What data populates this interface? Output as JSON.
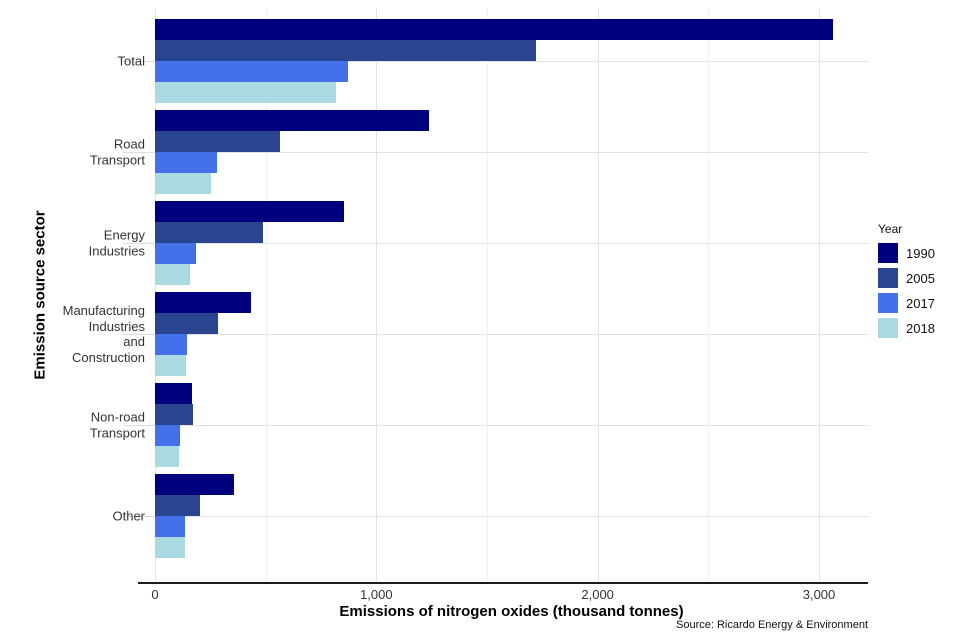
{
  "chart_data": {
    "type": "bar",
    "orientation": "horizontal",
    "xlabel": "Emissions of nitrogen oxides (thousand tonnes)",
    "ylabel": "Emission source sector",
    "xlim": [
      0,
      3220
    ],
    "x_ticks": [
      0,
      1000,
      2000,
      3000
    ],
    "x_tick_labels": [
      "0",
      "1,000",
      "2,000",
      "3,000"
    ],
    "x_gridlines_major": [
      0,
      1000,
      2000,
      3000
    ],
    "x_gridlines_minor": [
      500,
      1500,
      2500
    ],
    "grid": "on",
    "legend_title": "Year",
    "legend_position": "right",
    "categories": [
      "Total",
      "Road Transport",
      "Energy Industries",
      "Manufacturing Industries and Construction",
      "Non-road Transport",
      "Other"
    ],
    "category_label_lines": [
      "Total",
      "Road\nTransport",
      "Energy\nIndustries",
      "Manufacturing\nIndustries\nand\nConstruction",
      "Non-road\nTransport",
      "Other"
    ],
    "series": [
      {
        "name": "1990",
        "color": "#00007F",
        "values": [
          3065,
          1240,
          855,
          435,
          168,
          355
        ]
      },
      {
        "name": "2005",
        "color": "#2A4590",
        "values": [
          1720,
          565,
          490,
          285,
          172,
          205
        ]
      },
      {
        "name": "2017",
        "color": "#4470EA",
        "values": [
          870,
          280,
          185,
          145,
          113,
          135
        ]
      },
      {
        "name": "2018",
        "color": "#ABD9E1",
        "values": [
          820,
          255,
          160,
          142,
          110,
          135
        ]
      }
    ],
    "source": "Source: Ricardo Energy & Environment"
  }
}
